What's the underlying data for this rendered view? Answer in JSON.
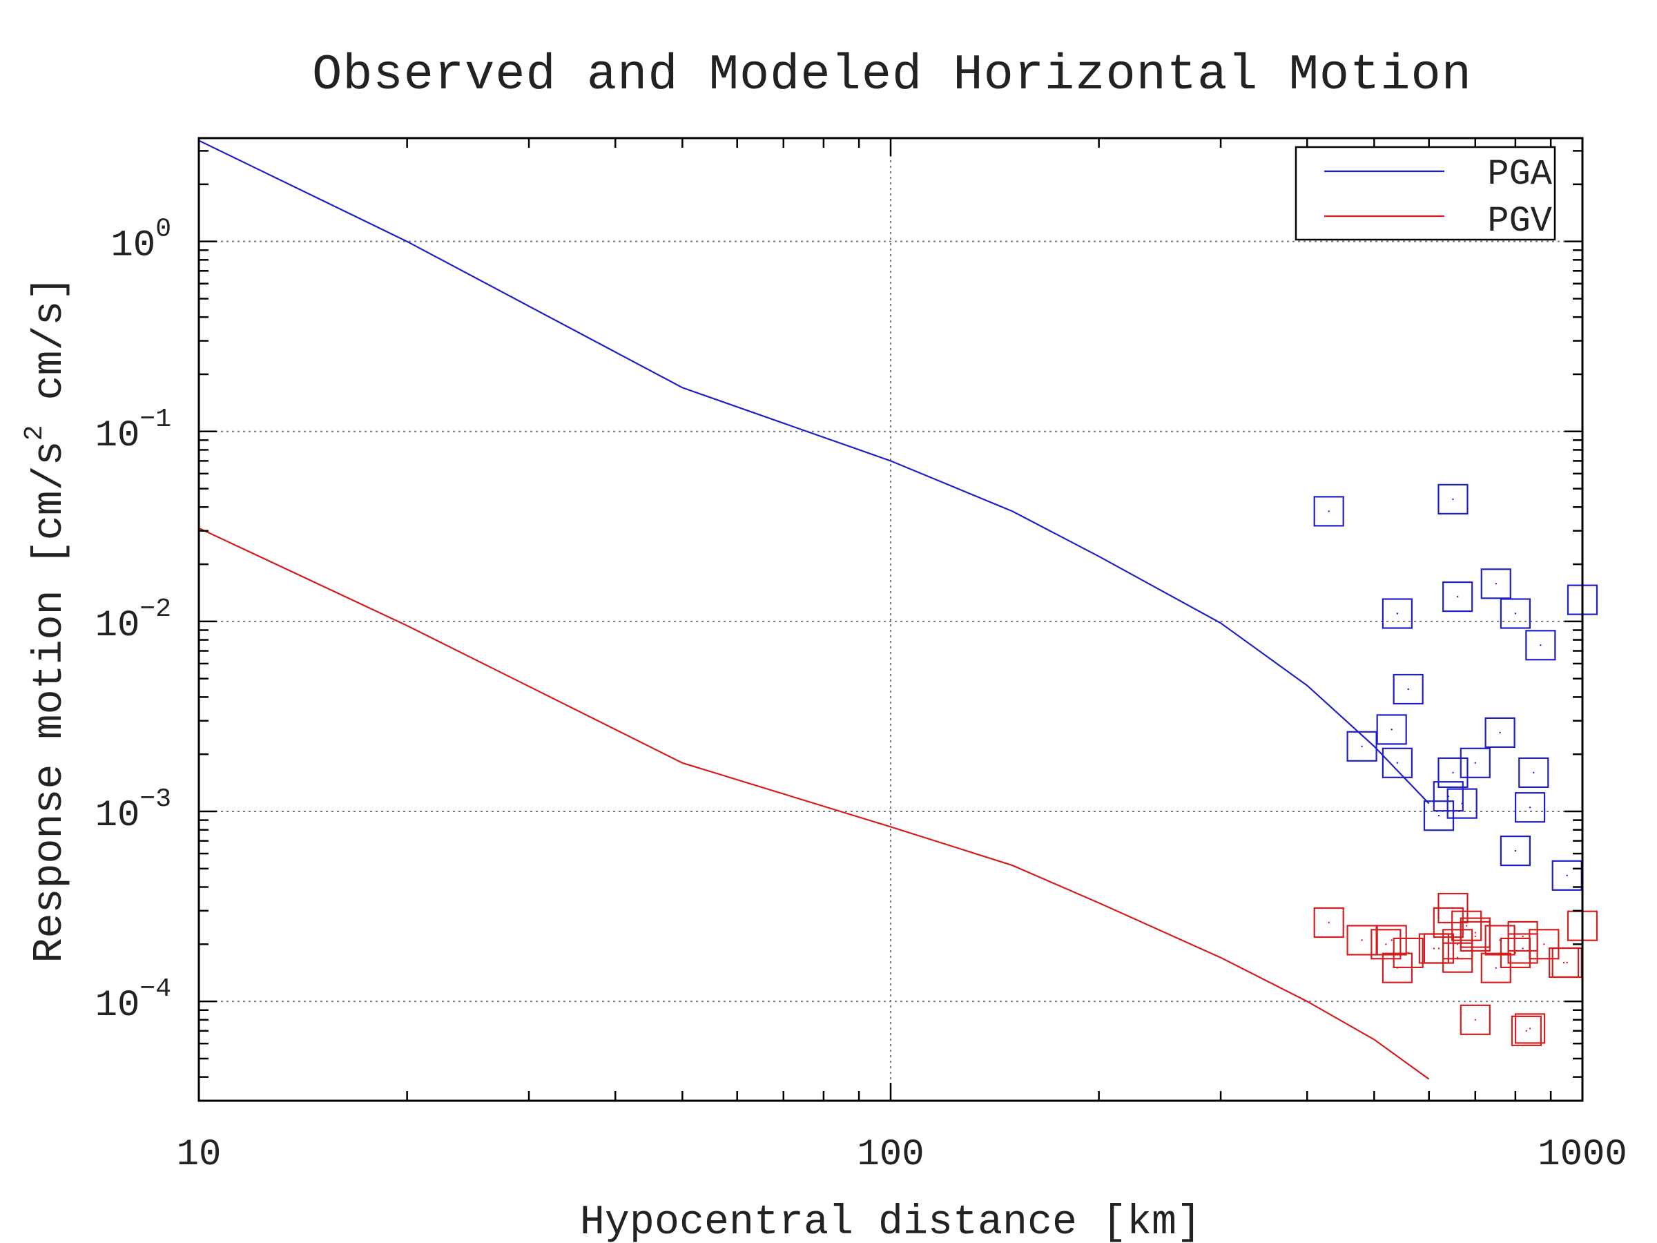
{
  "chart_data": {
    "type": "scatter",
    "title": "Observed and Modeled Horizontal Motion",
    "xlabel": "Hypocentral distance [km]",
    "ylabel": "Response motion  [cm/s² cm/s]",
    "ylabel_parts": {
      "pre": "Response motion  [cm/s",
      "sup": "2",
      "post": "  cm/s]"
    },
    "x_scale": "log",
    "y_scale": "log",
    "xlim": [
      10,
      1000
    ],
    "ylim": [
      3e-05,
      3.5
    ],
    "x_ticks": [
      {
        "value": 10,
        "label": "10"
      },
      {
        "value": 100,
        "label": "100"
      },
      {
        "value": 1000,
        "label": "1000"
      }
    ],
    "y_ticks": [
      {
        "value": 1,
        "base": "10",
        "exp": "0"
      },
      {
        "value": 0.1,
        "base": "10",
        "exp": "−1"
      },
      {
        "value": 0.01,
        "base": "10",
        "exp": "−2"
      },
      {
        "value": 0.001,
        "base": "10",
        "exp": "−3"
      },
      {
        "value": 0.0001,
        "base": "10",
        "exp": "−4"
      }
    ],
    "grid": true,
    "legend": {
      "position": "top-right",
      "entries": [
        {
          "label": "PGA",
          "color": "#1f1fc8"
        },
        {
          "label": "PGV",
          "color": "#d21e1e"
        }
      ]
    },
    "series": [
      {
        "name": "PGA",
        "kind": "line",
        "color": "#1f1fc8",
        "x": [
          10,
          20,
          50,
          100,
          150,
          200,
          300,
          400,
          500,
          600
        ],
        "y": [
          3.4,
          1.0,
          0.17,
          0.07,
          0.038,
          0.022,
          0.0098,
          0.0046,
          0.0022,
          0.0011
        ]
      },
      {
        "name": "PGV",
        "kind": "line",
        "color": "#d21e1e",
        "x": [
          10,
          20,
          50,
          100,
          150,
          200,
          300,
          400,
          500,
          600
        ],
        "y": [
          0.031,
          0.0095,
          0.0018,
          0.00083,
          0.00052,
          0.00033,
          0.00017,
          0.0001,
          6.3e-05,
          3.9e-05
        ]
      },
      {
        "name": "PGA observed",
        "kind": "scatter",
        "color": "#1f1fc8",
        "x": [
          430,
          650,
          540,
          660,
          750,
          800,
          870,
          1000,
          560,
          530,
          540,
          480,
          650,
          700,
          760,
          850,
          640,
          670,
          620,
          840,
          800,
          950
        ],
        "y": [
          0.038,
          0.044,
          0.011,
          0.0135,
          0.0158,
          0.011,
          0.0075,
          0.013,
          0.0044,
          0.0027,
          0.0018,
          0.0022,
          0.0016,
          0.0018,
          0.0026,
          0.0016,
          0.0012,
          0.0011,
          0.00095,
          0.00105,
          0.00062,
          0.00046
        ]
      },
      {
        "name": "PGV observed",
        "kind": "scatter",
        "color": "#d21e1e",
        "x": [
          430,
          480,
          520,
          540,
          560,
          620,
          640,
          650,
          660,
          680,
          700,
          750,
          800,
          820,
          880,
          950,
          1000,
          530,
          610,
          660,
          700,
          760,
          820,
          940,
          700,
          830,
          840
        ],
        "y": [
          0.00026,
          0.00021,
          0.0002,
          0.00015,
          0.00018,
          0.00019,
          0.00026,
          0.00031,
          0.00017,
          0.00025,
          0.00022,
          0.00015,
          0.00018,
          0.00022,
          0.0002,
          0.00016,
          0.00025,
          0.00021,
          0.00019,
          0.0002,
          0.00023,
          0.00021,
          0.00019,
          0.00016,
          8e-05,
          7e-05,
          7.2e-05
        ]
      }
    ]
  }
}
